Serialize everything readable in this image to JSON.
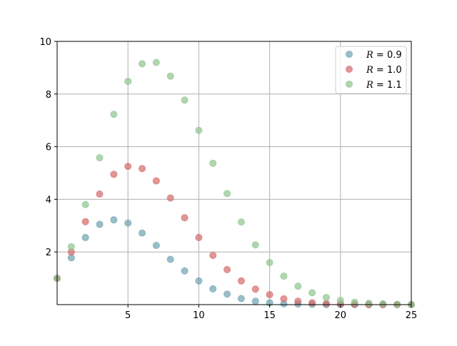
{
  "chart_data": {
    "type": "scatter",
    "title": "",
    "xlabel": "",
    "ylabel": "",
    "xlim": [
      0,
      25
    ],
    "ylim": [
      0,
      10
    ],
    "xticks": [
      5,
      10,
      15,
      20,
      25
    ],
    "yticks": [
      2,
      4,
      6,
      8,
      10
    ],
    "xtick_labels": [
      "5",
      "10",
      "15",
      "20",
      "25"
    ],
    "ytick_labels": [
      "2",
      "4",
      "6",
      "8",
      "10"
    ],
    "grid": true,
    "legend_position": "top-right",
    "x": [
      0,
      1,
      2,
      3,
      4,
      5,
      6,
      7,
      8,
      9,
      10,
      11,
      12,
      13,
      14,
      15,
      16,
      17,
      18,
      19,
      20,
      21,
      22,
      23,
      24,
      25
    ],
    "series": [
      {
        "name": "R = 0.9",
        "legend_var": "R",
        "legend_val": "0.9",
        "color": "#6fa3b0",
        "values": [
          1.0,
          1.78,
          2.55,
          3.05,
          3.22,
          3.1,
          2.72,
          2.25,
          1.72,
          1.28,
          0.9,
          0.6,
          0.4,
          0.23,
          0.13,
          0.07,
          0.03,
          0.02,
          0.01,
          0.0,
          0.0,
          0.0,
          0.0,
          0.0,
          0.0,
          0.0
        ]
      },
      {
        "name": "R = 1.0",
        "legend_var": "R",
        "legend_val": "1.0",
        "color": "#d46a6a",
        "values": [
          1.0,
          2.0,
          3.15,
          4.2,
          4.95,
          5.25,
          5.17,
          4.7,
          4.05,
          3.3,
          2.55,
          1.87,
          1.33,
          0.9,
          0.59,
          0.38,
          0.22,
          0.13,
          0.07,
          0.04,
          0.02,
          0.01,
          0.0,
          0.0,
          0.0,
          0.0
        ]
      },
      {
        "name": "R = 1.1",
        "legend_var": "R",
        "legend_val": "1.1",
        "color": "#8fc48f",
        "values": [
          1.0,
          2.2,
          3.8,
          5.58,
          7.23,
          8.48,
          9.15,
          9.2,
          8.68,
          7.77,
          6.62,
          5.37,
          4.22,
          3.14,
          2.27,
          1.6,
          1.08,
          0.7,
          0.45,
          0.27,
          0.16,
          0.09,
          0.05,
          0.03,
          0.01,
          0.0
        ]
      }
    ]
  }
}
